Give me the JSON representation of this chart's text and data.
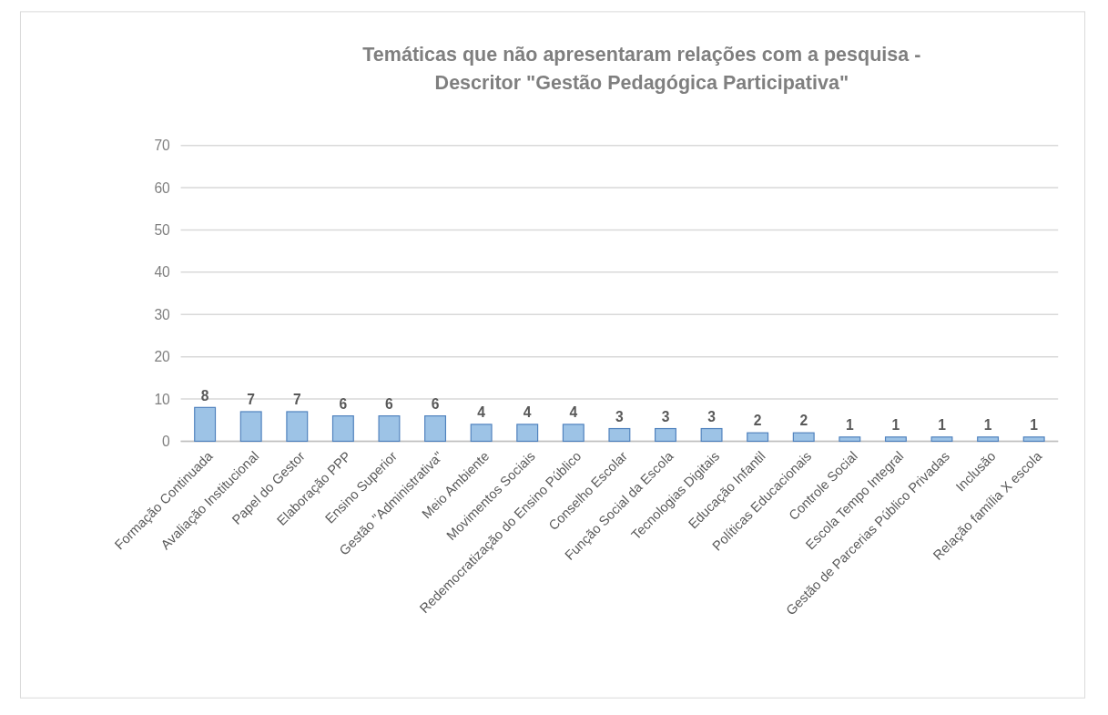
{
  "chart_data": {
    "type": "bar",
    "title": "Temáticas que não apresentaram relações com a pesquisa - Descritor \"Gestão Pedagógica Participativa\"",
    "categories": [
      "Formação Continuada",
      "Avaliação Institucional",
      "Papel do Gestor",
      "Elaboração PPP",
      "Ensino Superior",
      "Gestão \"Administrativa\"",
      "Meio Ambiente",
      "Movimentos Sociais",
      "Redemocratização do Ensino Público",
      "Conselho Escolar",
      "Função Social da Escola",
      "Tecnologias Digitais",
      "Educação Infantil",
      "Políticas Educacionais",
      "Controle Social",
      "Escola Tempo Integral",
      "Gestão de Parcerias Público Privadas",
      "Inclusão",
      "Relação família X escola"
    ],
    "values": [
      8,
      7,
      7,
      6,
      6,
      6,
      4,
      4,
      4,
      3,
      3,
      3,
      2,
      2,
      1,
      1,
      1,
      1,
      1
    ],
    "color": "#9dc3e6",
    "ylim": [
      0,
      70
    ],
    "yticks": [
      0,
      10,
      20,
      30,
      40,
      50,
      60,
      70
    ],
    "grid": "y",
    "data_labels": true
  }
}
